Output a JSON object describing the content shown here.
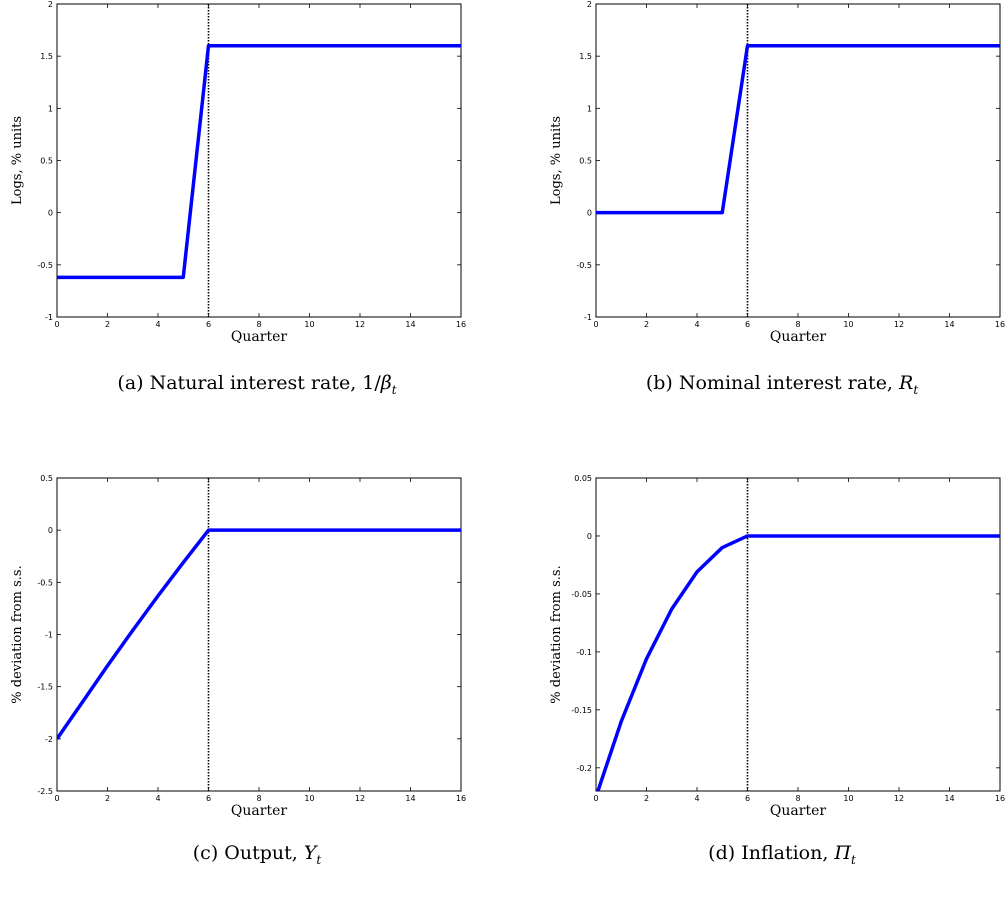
{
  "chart_data": [
    {
      "type": "line",
      "id": "a",
      "caption": {
        "prefix": "(a) Natural interest rate, 1/",
        "symbol": "β",
        "subscript": "t"
      },
      "xlabel": "Quarter",
      "ylabel": "Logs, % units",
      "xlim": [
        0,
        16
      ],
      "ylim": [
        -1,
        2
      ],
      "xticks": [
        0,
        2,
        4,
        6,
        8,
        10,
        12,
        14,
        16
      ],
      "yticks": [
        -1,
        -0.5,
        0,
        0.5,
        1,
        1.5,
        2
      ],
      "ytick_labels": [
        "-1",
        "-0.5",
        "0",
        "0.5",
        "1",
        "1.5",
        "2"
      ],
      "vline": 6,
      "series": [
        {
          "x": [
            0,
            1,
            2,
            3,
            4,
            5,
            6,
            7,
            8,
            9,
            10,
            11,
            12,
            13,
            14,
            15,
            16
          ],
          "y": [
            -0.62,
            -0.62,
            -0.62,
            -0.62,
            -0.62,
            -0.62,
            1.6,
            1.6,
            1.6,
            1.6,
            1.6,
            1.6,
            1.6,
            1.6,
            1.6,
            1.6,
            1.6
          ]
        }
      ]
    },
    {
      "type": "line",
      "id": "b",
      "caption": {
        "prefix": "(b) Nominal interest rate, ",
        "symbol": "R",
        "subscript": "t"
      },
      "xlabel": "Quarter",
      "ylabel": "Logs, % units",
      "xlim": [
        0,
        16
      ],
      "ylim": [
        -1,
        2
      ],
      "xticks": [
        0,
        2,
        4,
        6,
        8,
        10,
        12,
        14,
        16
      ],
      "yticks": [
        -1,
        -0.5,
        0,
        0.5,
        1,
        1.5,
        2
      ],
      "ytick_labels": [
        "-1",
        "-0.5",
        "0",
        "0.5",
        "1",
        "1.5",
        "2"
      ],
      "vline": 6,
      "series": [
        {
          "x": [
            0,
            1,
            2,
            3,
            4,
            5,
            6,
            7,
            8,
            9,
            10,
            11,
            12,
            13,
            14,
            15,
            16
          ],
          "y": [
            0,
            0,
            0,
            0,
            0,
            0,
            1.6,
            1.6,
            1.6,
            1.6,
            1.6,
            1.6,
            1.6,
            1.6,
            1.6,
            1.6,
            1.6
          ]
        }
      ]
    },
    {
      "type": "line",
      "id": "c",
      "caption": {
        "prefix": "(c) Output, ",
        "symbol": "Y",
        "subscript": "t"
      },
      "xlabel": "Quarter",
      "ylabel": "% deviation from s.s.",
      "xlim": [
        0,
        16
      ],
      "ylim": [
        -2.5,
        0.5
      ],
      "xticks": [
        0,
        2,
        4,
        6,
        8,
        10,
        12,
        14,
        16
      ],
      "yticks": [
        -2.5,
        -2,
        -1.5,
        -1,
        -0.5,
        0,
        0.5
      ],
      "ytick_labels": [
        "-2.5",
        "-2",
        "-1.5",
        "-1",
        "-0.5",
        "0",
        "0.5"
      ],
      "vline": 6,
      "series": [
        {
          "x": [
            0,
            1,
            2,
            3,
            4,
            5,
            6,
            7,
            8,
            9,
            10,
            11,
            12,
            13,
            14,
            15,
            16
          ],
          "y": [
            -2.0,
            -1.65,
            -1.3,
            -0.96,
            -0.63,
            -0.31,
            0,
            0,
            0,
            0,
            0,
            0,
            0,
            0,
            0,
            0,
            0
          ]
        }
      ]
    },
    {
      "type": "line",
      "id": "d",
      "caption": {
        "prefix": "(d) Inflation, ",
        "symbol": "Π",
        "subscript": "t"
      },
      "xlabel": "Quarter",
      "ylabel": "% deviation from s.s.",
      "xlim": [
        0,
        16
      ],
      "ylim": [
        -0.22,
        0.05
      ],
      "xticks": [
        0,
        2,
        4,
        6,
        8,
        10,
        12,
        14,
        16
      ],
      "yticks": [
        -0.2,
        -0.15,
        -0.1,
        -0.05,
        0,
        0.05
      ],
      "ytick_labels": [
        "-0.2",
        "-0.15",
        "-0.1",
        "-0.05",
        "0",
        "0.05"
      ],
      "vline": 6,
      "series": [
        {
          "x": [
            0,
            1,
            2,
            3,
            4,
            5,
            6,
            7,
            8,
            9,
            10,
            11,
            12,
            13,
            14,
            15,
            16
          ],
          "y": [
            -0.225,
            -0.16,
            -0.106,
            -0.063,
            -0.031,
            -0.01,
            0,
            0,
            0,
            0,
            0,
            0,
            0,
            0,
            0,
            0,
            0
          ]
        }
      ]
    }
  ],
  "colors": {
    "line": "#0000ff",
    "axes": "#000000",
    "vline": "#000000"
  }
}
